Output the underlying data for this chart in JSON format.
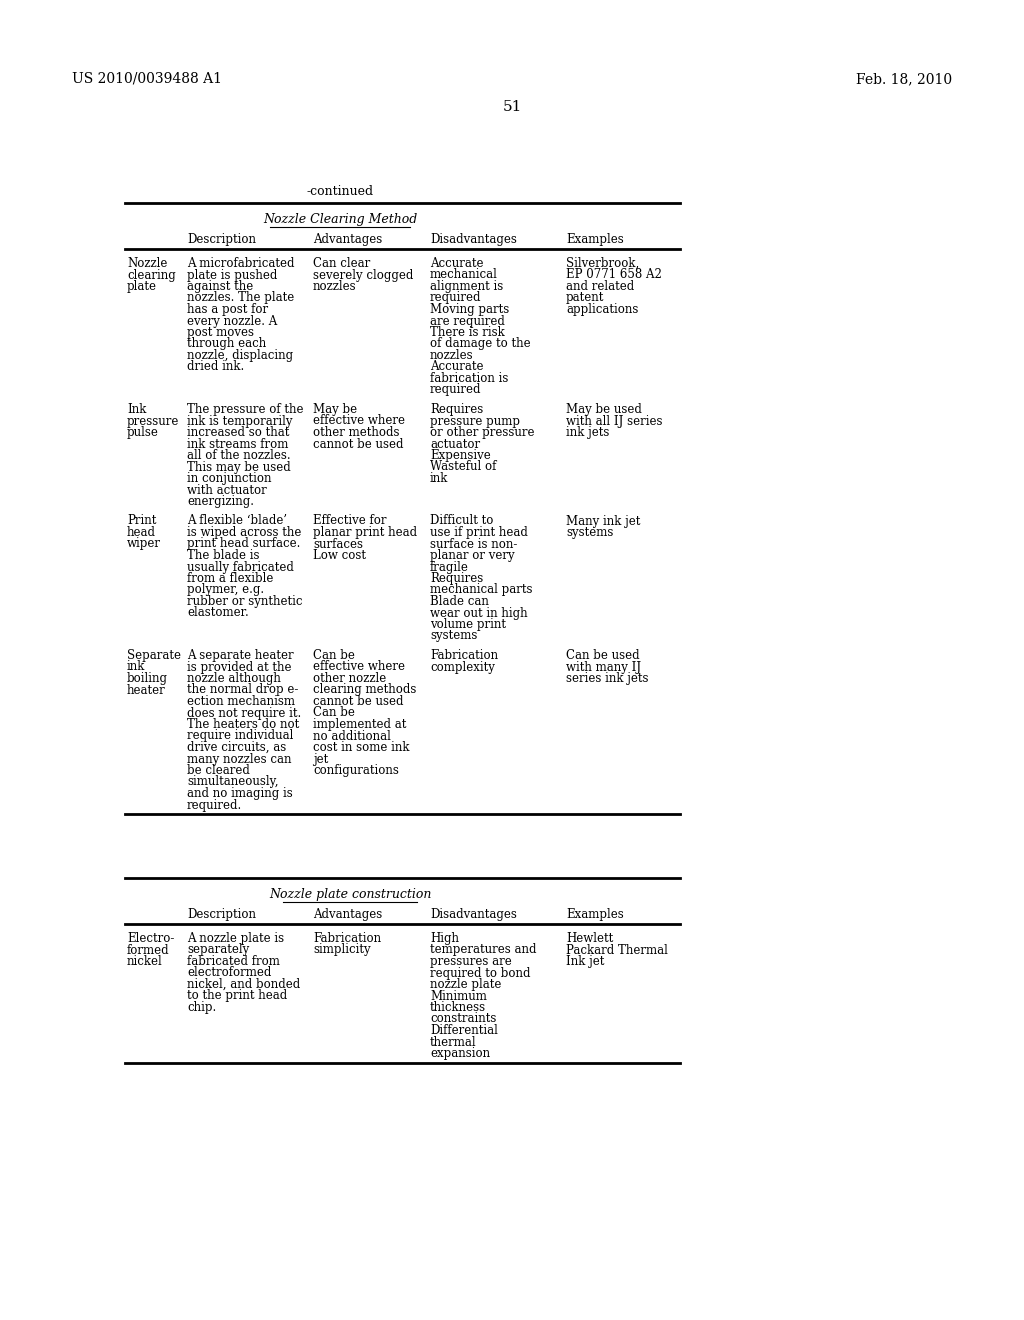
{
  "bg_color": "#ffffff",
  "header_left": "US 2010/0039488 A1",
  "header_right": "Feb. 18, 2010",
  "page_number": "51",
  "continued_label": "-continued",
  "table1_title": "Nozzle Clearing Method",
  "table1_headers": [
    "Description",
    "Advantages",
    "Disadvantages",
    "Examples"
  ],
  "table1_col1_header": "",
  "table1_rows": [
    {
      "name": "Nozzle\nclearing\nplate",
      "description": "A microfabricated\nplate is pushed\nagainst the\nnozzles. The plate\nhas a post for\nevery nozzle. A\npost moves\nthrough each\nnozzle, displacing\ndried ink.",
      "advantages": "Can clear\nseverely clogged\nnozzles",
      "disadvantages": "Accurate\nmechanical\nalignment is\nrequired\nMoving parts\nare required\nThere is risk\nof damage to the\nnozzles\nAccurate\nfabrication is\nrequired",
      "examples": "Silverbrook,\nEP 0771 658 A2\nand related\npatent\napplications"
    },
    {
      "name": "Ink\npressure\npulse",
      "description": "The pressure of the\nink is temporarily\nincreased so that\nink streams from\nall of the nozzles.\nThis may be used\nin conjunction\nwith actuator\nenergizing.",
      "advantages": "May be\neffective where\nother methods\ncannot be used",
      "disadvantages": "Requires\npressure pump\nor other pressure\nactuator\nExpensive\nWasteful of\nink",
      "examples": "May be used\nwith all IJ series\nink jets"
    },
    {
      "name": "Print\nhead\nwiper",
      "description": "A flexible ‘blade’\nis wiped across the\nprint head surface.\nThe blade is\nusually fabricated\nfrom a flexible\npolymer, e.g.\nrubber or synthetic\nelastomer.",
      "advantages": "Effective for\nplanar print head\nsurfaces\nLow cost",
      "disadvantages": "Difficult to\nuse if print head\nsurface is non-\nplanar or very\nfragile\nRequires\nmechanical parts\nBlade can\nwear out in high\nvolume print\nsystems",
      "examples": "Many ink jet\nsystems"
    },
    {
      "name": "Separate\nink\nboiling\nheater",
      "description": "A separate heater\nis provided at the\nnozzle although\nthe normal drop e-\nection mechanism\ndoes not require it.\nThe heaters do not\nrequire individual\ndrive circuits, as\nmany nozzles can\nbe cleared\nsimultaneously,\nand no imaging is\nrequired.",
      "advantages": "Can be\neffective where\nother nozzle\nclearing methods\ncannot be used\nCan be\nimplemented at\nno additional\ncost in some ink\njet\nconfigurations",
      "disadvantages": "Fabrication\ncomplexity",
      "examples": "Can be used\nwith many IJ\nseries ink jets"
    }
  ],
  "table2_title": "Nozzle plate construction",
  "table2_headers": [
    "Description",
    "Advantages",
    "Disadvantages",
    "Examples"
  ],
  "table2_rows": [
    {
      "name": "Electro-\nformed\nnickel",
      "description": "A nozzle plate is\nseparately\nfabricated from\nelectroformed\nnickel, and bonded\nto the print head\nchip.",
      "advantages": "Fabrication\nsimplicity",
      "disadvantages": "High\ntemperatures and\npressures are\nrequired to bond\nnozzle plate\nMinimum\nthickness\nconstraints\nDifferential\nthermal\nexpansion",
      "examples": "Hewlett\nPackard Thermal\nInk jet"
    }
  ]
}
